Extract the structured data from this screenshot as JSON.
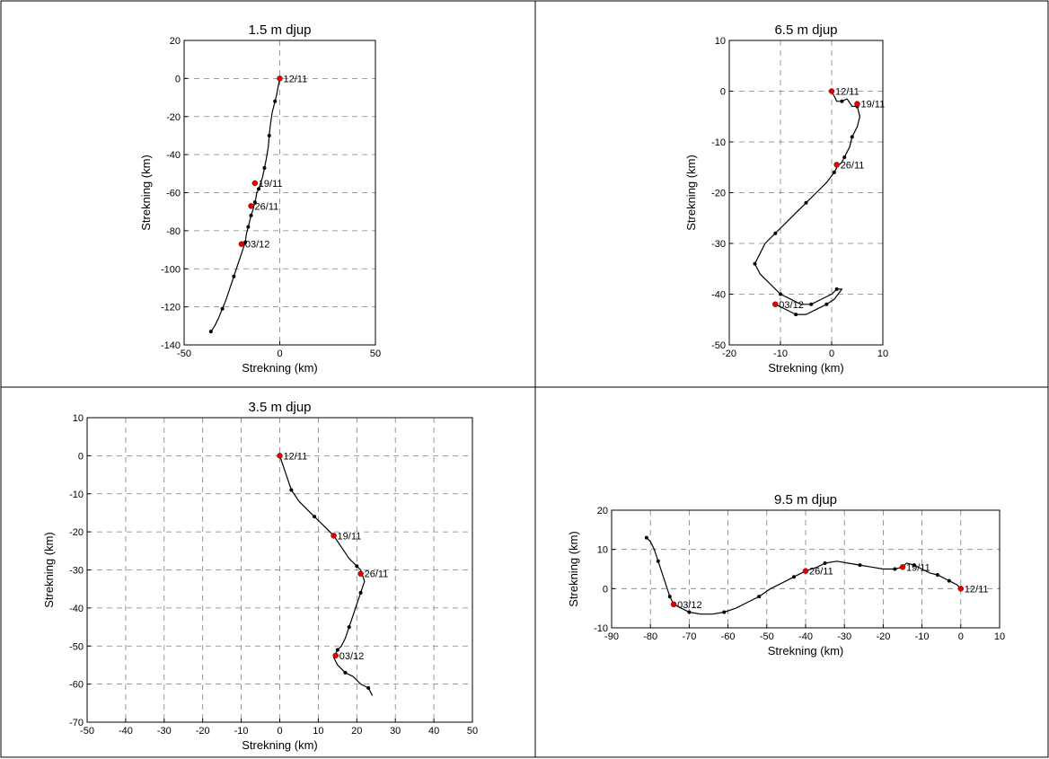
{
  "chart_data": [
    {
      "type": "line",
      "title": "1.5 m djup",
      "xlabel": "Strekning (km)",
      "ylabel": "Strekning (km)",
      "xlim": [
        -50,
        50
      ],
      "ylim": [
        -140,
        20
      ],
      "xticks": [
        -50,
        0,
        50
      ],
      "yticks": [
        -140,
        -120,
        -100,
        -80,
        -60,
        -40,
        -20,
        0,
        20
      ],
      "grid": true,
      "series": [
        {
          "x": [
            0,
            -1,
            -1.5,
            -2.5,
            -4,
            -5,
            -5.5,
            -6,
            -7,
            -8,
            -9,
            -10,
            -11,
            -12,
            -12.5,
            -13,
            -13.5,
            -14,
            -15,
            -15.5,
            -16,
            -16.5,
            -17,
            -17.5,
            -18,
            -20,
            -22,
            -24,
            -26,
            -28,
            -30,
            -32,
            -34,
            -36
          ],
          "y": [
            0,
            -5,
            -8,
            -12,
            -18,
            -25,
            -30,
            -36,
            -42,
            -47,
            -52,
            -55,
            -58,
            -60,
            -63,
            -65,
            -67,
            -69,
            -72,
            -74,
            -76,
            -78,
            -80,
            -82,
            -86,
            -92,
            -98,
            -104,
            -110,
            -116,
            -121,
            -126,
            -130,
            -133
          ]
        }
      ],
      "markers": [
        {
          "label": "12/11",
          "x": 0,
          "y": 0
        },
        {
          "label": "19/11",
          "x": -13,
          "y": -55
        },
        {
          "label": "26/11",
          "x": -15,
          "y": -67
        },
        {
          "label": "03/12",
          "x": -20,
          "y": -87
        }
      ]
    },
    {
      "type": "line",
      "title": "6.5 m djup",
      "xlabel": "Strekning (km)",
      "ylabel": "Strekning (km)",
      "xlim": [
        -20,
        10
      ],
      "ylim": [
        -50,
        10
      ],
      "xticks": [
        -20,
        -10,
        0,
        10
      ],
      "yticks": [
        -50,
        -40,
        -30,
        -20,
        -10,
        0,
        10
      ],
      "grid": true,
      "series": [
        {
          "x": [
            0,
            0.5,
            1,
            2,
            3,
            4,
            5,
            5.5,
            5,
            4,
            3.5,
            3,
            2.5,
            2,
            1,
            0.5,
            -1,
            -3,
            -5,
            -7,
            -9,
            -11,
            -13,
            -14,
            -15,
            -14,
            -12,
            -10,
            -8,
            -6,
            -4,
            -2,
            0,
            1,
            2,
            0.5,
            -1,
            -3,
            -5,
            -7,
            -9,
            -11
          ],
          "y": [
            0,
            -1,
            -2,
            -2,
            -1.5,
            -3,
            -3,
            -5,
            -7,
            -9,
            -11,
            -12,
            -13,
            -14,
            -15,
            -16,
            -18,
            -20,
            -22,
            -24,
            -26,
            -28,
            -30,
            -32,
            -34,
            -36,
            -38,
            -40,
            -41,
            -42,
            -42,
            -41,
            -40,
            -39,
            -39,
            -41,
            -42,
            -43,
            -44,
            -44,
            -43,
            -42
          ]
        }
      ],
      "markers": [
        {
          "label": "12/11",
          "x": 0,
          "y": 0
        },
        {
          "label": "19/11",
          "x": 5,
          "y": -2.5
        },
        {
          "label": "26/11",
          "x": 1,
          "y": -14.5
        },
        {
          "label": "03/12",
          "x": -11,
          "y": -42
        }
      ]
    },
    {
      "type": "line",
      "title": "3.5 m djup",
      "xlabel": "Strekning (km)",
      "ylabel": "Strekning (km)",
      "xlim": [
        -50,
        50
      ],
      "ylim": [
        -70,
        10
      ],
      "xticks": [
        -50,
        -40,
        -30,
        -20,
        -10,
        0,
        10,
        20,
        30,
        40,
        50
      ],
      "yticks": [
        -70,
        -60,
        -50,
        -40,
        -30,
        -20,
        -10,
        0,
        10
      ],
      "grid": true,
      "series": [
        {
          "x": [
            0,
            1,
            2,
            3,
            5,
            7,
            9,
            11,
            13,
            14,
            16,
            18,
            20,
            21,
            22,
            21,
            20,
            19,
            18,
            17,
            16,
            15,
            14,
            15,
            17,
            19,
            21,
            23,
            24
          ],
          "y": [
            0,
            -3,
            -6,
            -9,
            -12,
            -14,
            -16,
            -18,
            -20,
            -21,
            -24,
            -27,
            -29,
            -30,
            -33,
            -36,
            -39,
            -42,
            -45,
            -48,
            -50,
            -51,
            -53,
            -55,
            -57,
            -58,
            -60,
            -61,
            -63
          ]
        }
      ],
      "markers": [
        {
          "label": "12/11",
          "x": 0,
          "y": 0
        },
        {
          "label": "19/11",
          "x": 14,
          "y": -21
        },
        {
          "label": "26/11",
          "x": 21,
          "y": -31
        },
        {
          "label": "03/12",
          "x": 14.5,
          "y": -52.5
        }
      ]
    },
    {
      "type": "line",
      "title": "9.5 m djup",
      "xlabel": "Strekning (km)",
      "ylabel": "Strekning (km)",
      "xlim": [
        -90,
        10
      ],
      "ylim": [
        -10,
        20
      ],
      "xticks": [
        -90,
        -80,
        -70,
        -60,
        -50,
        -40,
        -30,
        -20,
        -10,
        0,
        10
      ],
      "yticks": [
        -10,
        0,
        10,
        20
      ],
      "grid": true,
      "series": [
        {
          "x": [
            0,
            -1,
            -2,
            -3,
            -4,
            -5,
            -6,
            -8,
            -10,
            -12,
            -14,
            -15,
            -17,
            -20,
            -23,
            -26,
            -29,
            -32,
            -35,
            -37,
            -40,
            -43,
            -46,
            -49,
            -52,
            -55,
            -58,
            -61,
            -64,
            -67,
            -70,
            -72,
            -74,
            -75,
            -76,
            -77,
            -78,
            -79,
            -80,
            -81
          ],
          "y": [
            0,
            1,
            1.5,
            2,
            2.5,
            3,
            3.5,
            4,
            5,
            6,
            6.5,
            5.5,
            5,
            5,
            5.5,
            6,
            6.5,
            7,
            6.5,
            5.5,
            4.5,
            3,
            1.5,
            0,
            -2,
            -3.5,
            -5,
            -6,
            -6.5,
            -6.5,
            -6,
            -5,
            -4,
            -2,
            1,
            4,
            7,
            10,
            12,
            13
          ]
        }
      ],
      "markers": [
        {
          "label": "12/11",
          "x": 0,
          "y": 0
        },
        {
          "label": "19/11",
          "x": -15,
          "y": 5.5
        },
        {
          "label": "26/11",
          "x": -40,
          "y": 4.5
        },
        {
          "label": "03/12",
          "x": -74,
          "y": -4
        }
      ]
    }
  ]
}
